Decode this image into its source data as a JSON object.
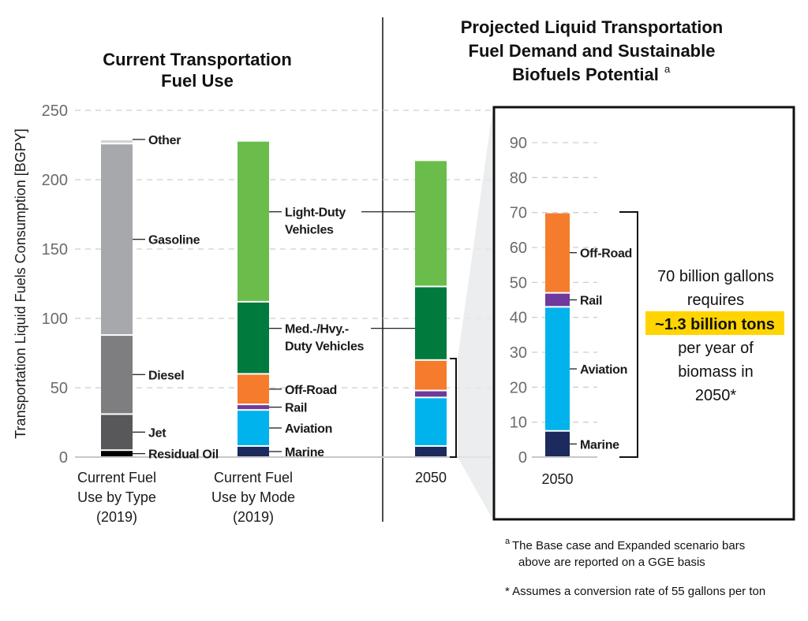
{
  "chart_data": [
    {
      "type": "bar",
      "stacked": true,
      "title_left": [
        "Current Transportation",
        "Fuel Use"
      ],
      "title_right": [
        "Projected Liquid Transportation",
        "Fuel Demand and Sustainable",
        "Biofuels Potential"
      ],
      "title_right_sup": "a",
      "ylabel": "Transportation Liquid Fuels Consumption [BGPY]",
      "ylim": [
        0,
        250
      ],
      "yticks": [
        0,
        50,
        100,
        150,
        200,
        250
      ],
      "grid": true,
      "categories": [
        [
          "Current Fuel",
          "Use by Type",
          "(2019)"
        ],
        [
          "Current Fuel",
          "Use by Mode",
          "(2019)"
        ],
        [
          "2050"
        ]
      ],
      "bars": [
        {
          "segments": [
            {
              "name": "Residual Oil",
              "value": 5,
              "color": "#000000"
            },
            {
              "name": "Jet",
              "value": 26,
              "color": "#58585a"
            },
            {
              "name": "Diesel",
              "value": 57,
              "color": "#7e7e80"
            },
            {
              "name": "Gasoline",
              "value": 138,
              "color": "#a7a8ab"
            },
            {
              "name": "Other",
              "value": 3,
              "color": "#d3d3d3"
            }
          ]
        },
        {
          "segments": [
            {
              "name": "Marine",
              "value": 8,
              "color": "#1d2a5e"
            },
            {
              "name": "Aviation",
              "value": 26,
              "color": "#00b3ec"
            },
            {
              "name": "Rail",
              "value": 4,
              "color": "#6f3a9b"
            },
            {
              "name": "Off-Road",
              "value": 22,
              "color": "#f47c2c"
            },
            {
              "name": "Med.-/Hvy.- Duty Vehicles",
              "value": 52,
              "color": "#007a3d"
            },
            {
              "name": "Light-Duty Vehicles",
              "value": 116,
              "color": "#6abd4b"
            }
          ]
        },
        {
          "segments": [
            {
              "name": "Marine",
              "value": 8,
              "color": "#1d2a5e"
            },
            {
              "name": "Aviation",
              "value": 35,
              "color": "#00b3ec"
            },
            {
              "name": "Rail",
              "value": 5,
              "color": "#6f3a9b"
            },
            {
              "name": "Off-Road",
              "value": 22,
              "color": "#f47c2c"
            },
            {
              "name": "Med.-/Hvy.- Duty Vehicles",
              "value": 53,
              "color": "#007a3d"
            },
            {
              "name": "Light-Duty Vehicles",
              "value": 91,
              "color": "#6abd4b"
            }
          ]
        }
      ],
      "segment_labels": {
        "bar0": [
          [
            "Residual Oil"
          ],
          [
            "Jet"
          ],
          [
            "Diesel"
          ],
          [
            "Gasoline"
          ],
          [
            "Other"
          ]
        ],
        "bar1": [
          [
            "Marine"
          ],
          [
            "Aviation"
          ],
          [
            "Rail"
          ],
          [
            "Off-Road"
          ],
          [
            "Med.-/Hvy.-",
            "Duty Vehicles"
          ],
          [
            "Light-Duty",
            "Vehicles"
          ]
        ]
      }
    },
    {
      "type": "bar",
      "stacked": true,
      "ylim": [
        0,
        90
      ],
      "yticks": [
        0,
        10,
        20,
        30,
        40,
        50,
        60,
        70,
        80,
        90
      ],
      "grid": true,
      "categories": [
        [
          "2050"
        ]
      ],
      "bars": [
        {
          "segments": [
            {
              "name": "Marine",
              "value": 7.5,
              "color": "#1d2a5e"
            },
            {
              "name": "Aviation",
              "value": 35.5,
              "color": "#00b3ec"
            },
            {
              "name": "Rail",
              "value": 4,
              "color": "#6f3a9b"
            },
            {
              "name": "Off-Road",
              "value": 23,
              "color": "#f47c2c"
            }
          ]
        }
      ],
      "segment_labels": {
        "bar0": [
          [
            "Marine"
          ],
          [
            "Aviation"
          ],
          [
            "Rail"
          ],
          [
            "Off-Road"
          ]
        ]
      },
      "annotation": {
        "lines": [
          "70 billion gallons",
          "requires",
          "~1.3 billion tons",
          "per year of",
          "biomass in",
          "2050*"
        ],
        "highlight_line": 2,
        "highlight_color": "#ffd400"
      }
    }
  ],
  "footnotes": {
    "a_marker": "a",
    "a_line1": "The Base case and Expanded scenario bars",
    "a_line2": "above are reported on a GGE basis",
    "star": "* Assumes a conversion rate of 55 gallons per ton"
  }
}
